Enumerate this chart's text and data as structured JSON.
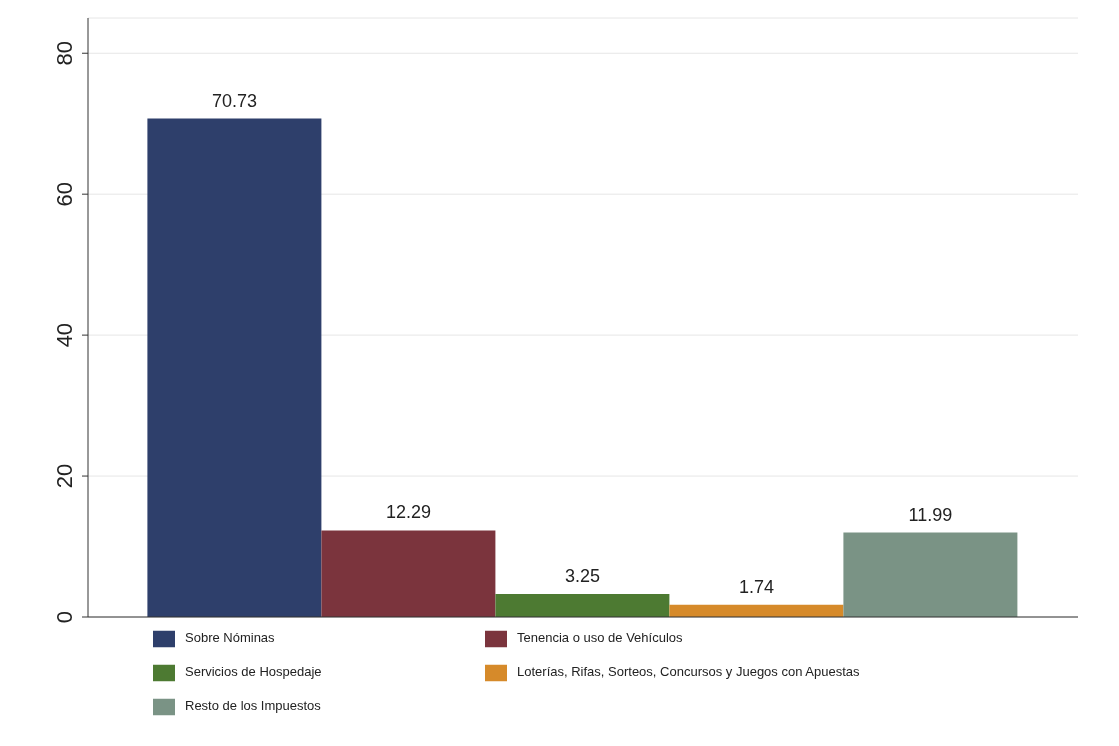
{
  "chart_data": {
    "type": "bar",
    "categories": [
      null
    ],
    "series": [
      {
        "name": "Sobre Nóminas",
        "color": "#2e3f6b",
        "values": [
          70.73
        ]
      },
      {
        "name": "Tenencia o uso de Vehículos",
        "color": "#7b343d",
        "values": [
          12.29
        ]
      },
      {
        "name": "Servicios de Hospedaje",
        "color": "#4d7a32",
        "values": [
          3.25
        ]
      },
      {
        "name": "Loterías, Rifas, Sorteos, Concursos y Juegos con Apuestas",
        "color": "#d68a2a",
        "values": [
          1.74
        ]
      },
      {
        "name": "Resto de los Impuestos",
        "color": "#7a9385",
        "values": [
          11.99
        ]
      }
    ],
    "ylim": [
      0,
      85
    ],
    "yticks": [
      0,
      20,
      40,
      60,
      80
    ],
    "grid": "y",
    "legend": "bottom",
    "data_labels": true
  }
}
